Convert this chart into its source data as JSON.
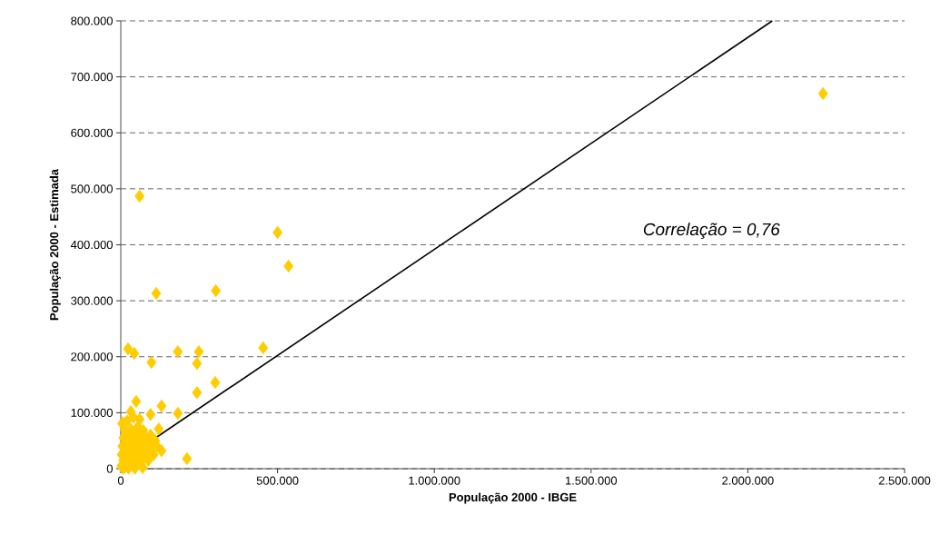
{
  "chart_data": {
    "type": "scatter",
    "xlabel": "População 2000 - IBGE",
    "ylabel": "População 2000 - Estimada",
    "annotations": [
      "Correlação = 0,76"
    ],
    "xlim": [
      0,
      2500000
    ],
    "ylim": [
      0,
      800000
    ],
    "xticks": [
      0,
      {
        "value": 500000,
        "label": "500.000"
      },
      {
        "value": 1000000,
        "label": "1.000.000"
      },
      {
        "value": 1500000,
        "label": "1.500.000"
      },
      {
        "value": 2000000,
        "label": "2.000.000"
      },
      {
        "value": 2500000,
        "label": "2.500.000"
      }
    ],
    "yticks": [
      0,
      {
        "value": 100000,
        "label": "100.000"
      },
      {
        "value": 200000,
        "label": "200.000"
      },
      {
        "value": 300000,
        "label": "300.000"
      },
      {
        "value": 400000,
        "label": "400.000"
      },
      {
        "value": 500000,
        "label": "500.000"
      },
      {
        "value": 600000,
        "label": "600.000"
      },
      {
        "value": 700000,
        "label": "700.000"
      },
      {
        "value": 800000,
        "label": "800.000"
      }
    ],
    "grid": "y",
    "series": [
      {
        "color": "#ffcc00",
        "marker": "diamond",
        "x": [
          2240000,
          60000,
          500000,
          535000,
          303000,
          113000,
          23000,
          43000,
          98000,
          182000,
          249000,
          243000,
          454000,
          301000,
          243000,
          49000,
          32000,
          130000,
          95000,
          182000,
          211000,
          130000,
          121000,
          5000,
          2000,
          5000,
          8000,
          10000,
          15000,
          18000,
          20000,
          22000,
          25000,
          28000,
          30000,
          32000,
          35000,
          38000,
          40000,
          42000,
          45000,
          48000,
          50000,
          52000,
          55000,
          58000,
          60000,
          62000,
          65000,
          68000,
          70000,
          72000,
          75000,
          78000,
          80000,
          85000,
          88000,
          90000,
          95000,
          100000,
          105000,
          110000,
          115000,
          5000,
          3000,
          8000,
          12000,
          6000,
          20000,
          70000,
          45000,
          25000,
          10000,
          40000,
          60000
        ],
        "values": [
          670000,
          487000,
          422000,
          362000,
          318000,
          313000,
          214000,
          206000,
          190000,
          209000,
          209000,
          188000,
          216000,
          154000,
          136000,
          120000,
          102000,
          112000,
          97000,
          99000,
          18000,
          32000,
          71000,
          80000,
          5000,
          2000,
          15000,
          30000,
          45000,
          20000,
          60000,
          35000,
          10000,
          50000,
          25000,
          70000,
          40000,
          5000,
          55000,
          15000,
          30000,
          65000,
          45000,
          20000,
          75000,
          35000,
          50000,
          10000,
          60000,
          30000,
          45000,
          68000,
          20000,
          40000,
          55000,
          30000,
          15000,
          45000,
          60000,
          35000,
          25000,
          50000,
          40000,
          40000,
          25000,
          55000,
          70000,
          82000,
          85000,
          2000,
          1000,
          1000,
          1000,
          92000,
          88000
        ]
      },
      {
        "type": "line",
        "color": "#000000",
        "line_style": "solid",
        "marker": "none",
        "x": [
          0,
          2078000
        ],
        "values": [
          13000,
          800000
        ]
      }
    ]
  }
}
